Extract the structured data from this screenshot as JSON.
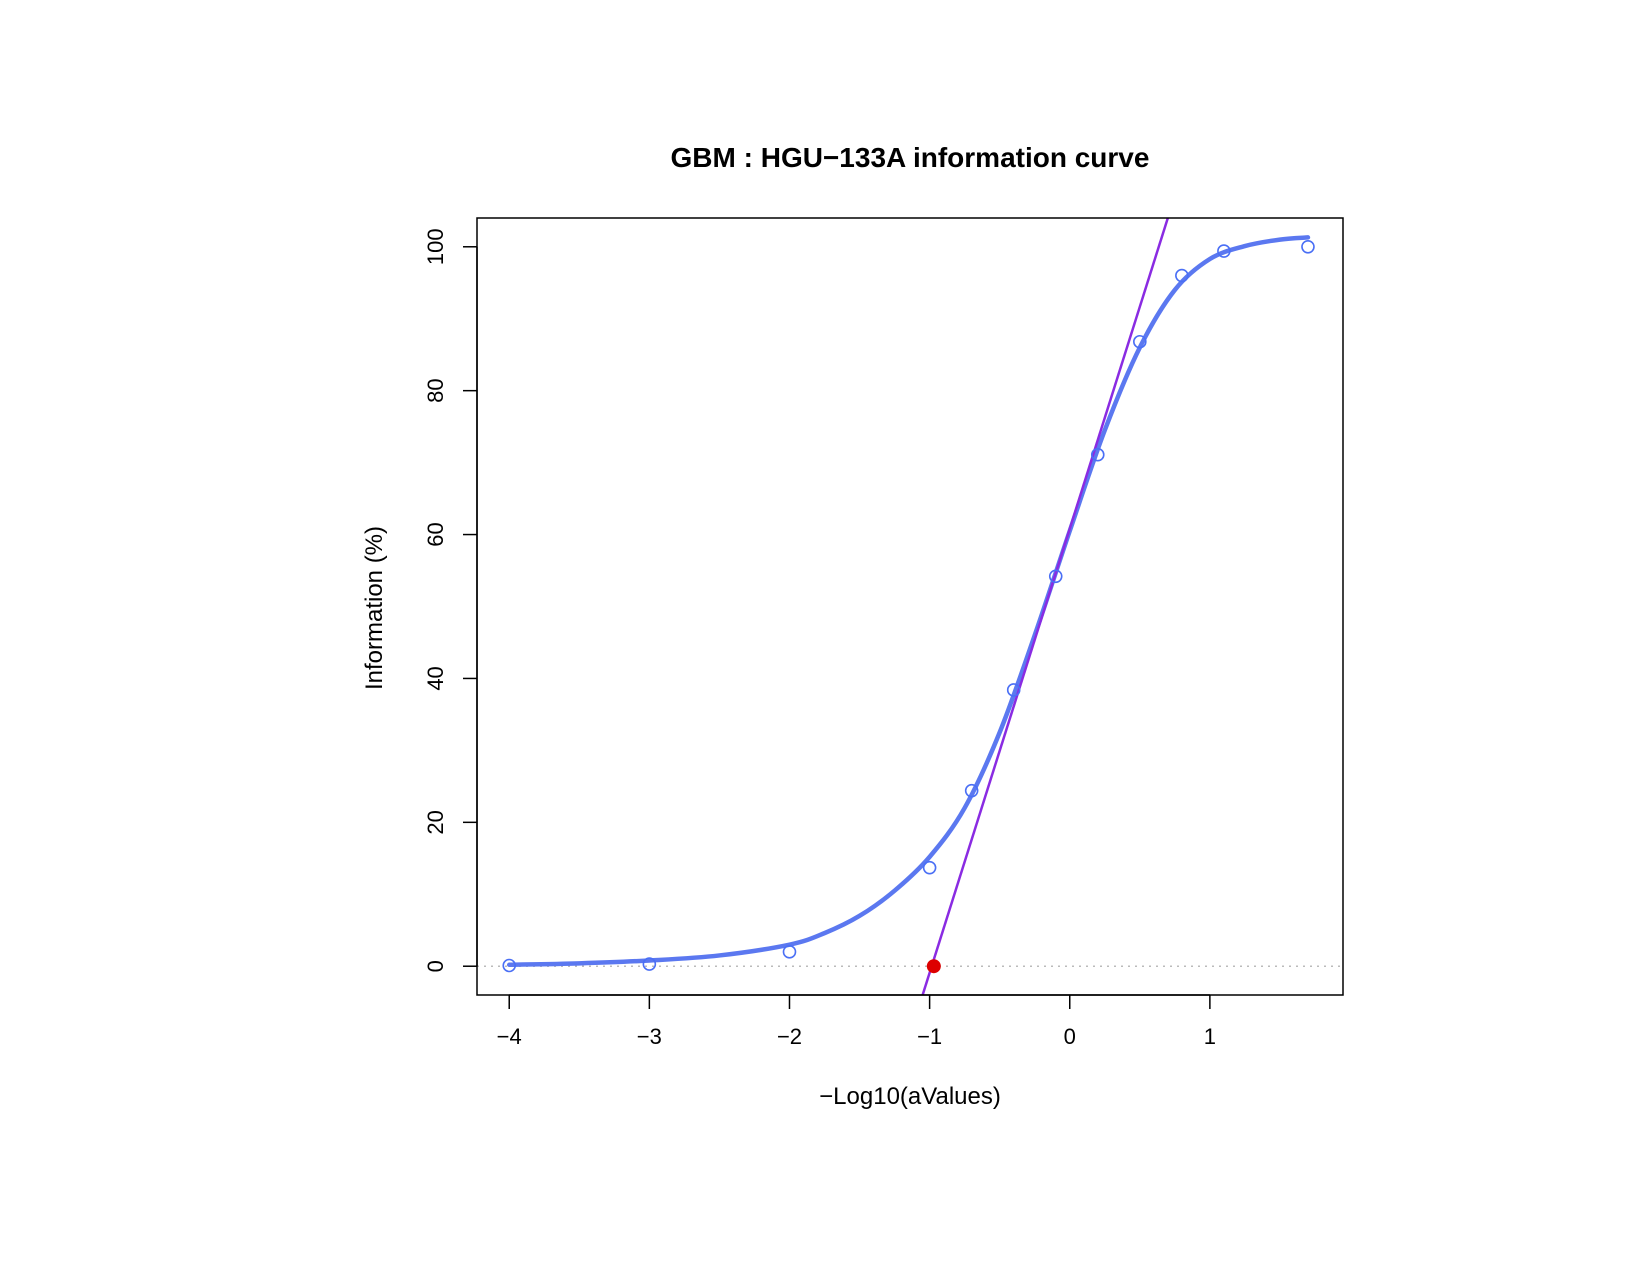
{
  "chart_data": {
    "type": "scatter",
    "title": "GBM : HGU−133A information curve",
    "xlabel": "−Log10(aValues)",
    "ylabel": "Information (%)",
    "xlim": [
      -4.23,
      1.95
    ],
    "ylim": [
      -4,
      104
    ],
    "x_ticks": [
      -4,
      -3,
      -2,
      -1,
      0,
      1
    ],
    "x_tick_labels": [
      "−4",
      "−3",
      "−2",
      "−1",
      "0",
      "1"
    ],
    "y_ticks": [
      0,
      20,
      40,
      60,
      80,
      100
    ],
    "y_tick_labels": [
      "0",
      "20",
      "40",
      "60",
      "80",
      "100"
    ],
    "grid": false,
    "series": [
      {
        "kind": "points",
        "marker": "open-circle",
        "color": "#4a6ff5",
        "x": [
          -4.0,
          -3.0,
          -2.0,
          -1.0,
          -0.7,
          -0.4,
          -0.1,
          0.2,
          0.5,
          0.8,
          1.1,
          1.7
        ],
        "y": [
          0.1,
          0.3,
          2.0,
          13.7,
          24.4,
          38.4,
          54.2,
          71.1,
          86.8,
          96.0,
          99.4,
          100.0
        ]
      },
      {
        "kind": "fitted-curve",
        "color": "#5b78f0",
        "x": [
          -4.0,
          -3.5,
          -3.0,
          -2.5,
          -2.0,
          -1.75,
          -1.5,
          -1.25,
          -1.0,
          -0.75,
          -0.5,
          -0.25,
          0.0,
          0.25,
          0.5,
          0.75,
          1.0,
          1.25,
          1.5,
          1.7
        ],
        "y": [
          0.2,
          0.4,
          0.8,
          1.5,
          3.0,
          4.6,
          7.0,
          10.5,
          15.2,
          22.0,
          32.5,
          46.0,
          60.5,
          74.5,
          86.0,
          94.0,
          98.3,
          100.1,
          101.0,
          101.3
        ]
      },
      {
        "kind": "tangent-line",
        "color": "#8a2be2",
        "x": [
          -1.05,
          0.7
        ],
        "y": [
          -4.0,
          104.0
        ]
      },
      {
        "kind": "marked-point",
        "color": "#dd0000",
        "x": [
          -0.97
        ],
        "y": [
          0.0
        ]
      }
    ],
    "reference_line": {
      "y": 0,
      "style": "dotted",
      "color": "#bbbbbb"
    }
  }
}
